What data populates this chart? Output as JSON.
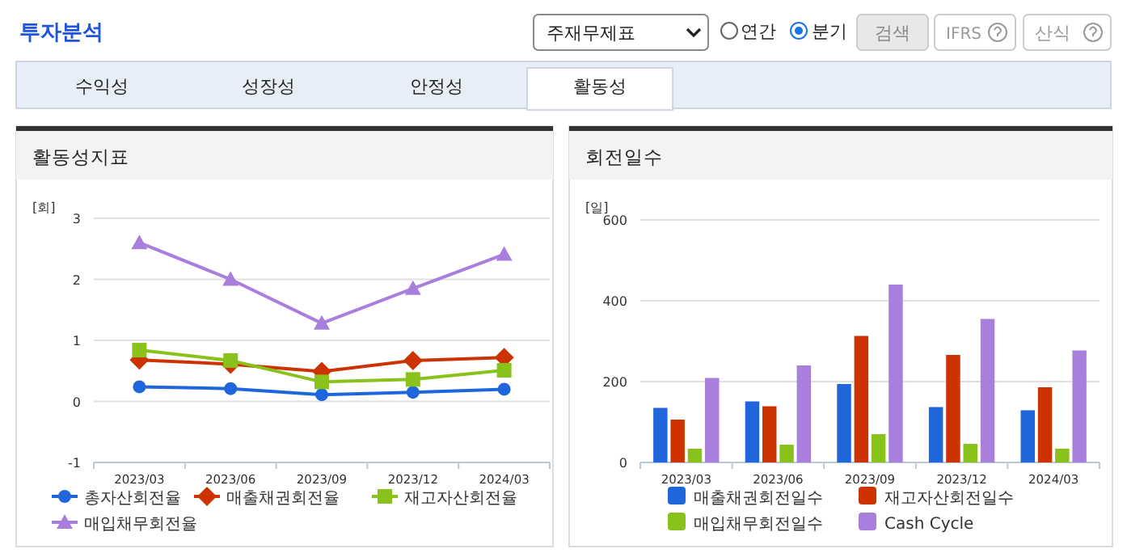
{
  "chart_data": [
    {
      "type": "other",
      "annotations": [
        "투자분석",
        "주재무제표",
        "연간",
        "분기",
        "검색",
        "IFRS",
        "산식",
        "수익성",
        "성장성",
        "안정성",
        "활동성"
      ]
    },
    {
      "type": "line",
      "title": "활동성지표",
      "ylabel": "[회]",
      "categories": [
        "2023/03",
        "2023/06",
        "2023/09",
        "2023/12",
        "2024/03"
      ],
      "ylim": [
        -1,
        3
      ],
      "yticks": [
        -1,
        0,
        1,
        2,
        3
      ],
      "grid": "y",
      "legend": "bottom",
      "series": [
        {
          "name": "총자산회전율",
          "color": "#1f66dd",
          "marker": "circle",
          "values": [
            0.24,
            0.21,
            0.11,
            0.15,
            0.2
          ]
        },
        {
          "name": "매출채권회전율",
          "color": "#cc3300",
          "marker": "diamond",
          "values": [
            0.68,
            0.61,
            0.49,
            0.67,
            0.72
          ]
        },
        {
          "name": "재고자산회전율",
          "color": "#88c21a",
          "marker": "square",
          "values": [
            0.84,
            0.67,
            0.32,
            0.36,
            0.51
          ]
        },
        {
          "name": "매입채무회전율",
          "color": "#a97fdd",
          "marker": "triangle",
          "values": [
            2.6,
            2.0,
            1.28,
            1.85,
            2.41
          ]
        }
      ]
    },
    {
      "type": "bar",
      "title": "회전일수",
      "ylabel": "[일]",
      "categories": [
        "2023/03",
        "2023/06",
        "2023/09",
        "2023/12",
        "2024/03"
      ],
      "ylim": [
        0,
        600
      ],
      "yticks": [
        0,
        200,
        400,
        600
      ],
      "grid": "y",
      "legend": "bottom",
      "series": [
        {
          "name": "매출채권회전일수",
          "color": "#1f66dd",
          "values": [
            135,
            151,
            194,
            137,
            129
          ]
        },
        {
          "name": "재고자산회전일수",
          "color": "#cc3300",
          "values": [
            106,
            139,
            313,
            266,
            186
          ]
        },
        {
          "name": "매입채무회전일수",
          "color": "#88c21a",
          "values": [
            34,
            44,
            70,
            46,
            34
          ]
        },
        {
          "name": "Cash Cycle",
          "color": "#a97fdd",
          "values": [
            209,
            240,
            440,
            355,
            277
          ]
        }
      ]
    }
  ]
}
